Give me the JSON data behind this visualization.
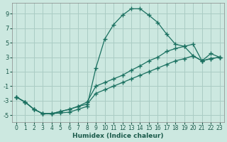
{
  "xlabel": "Humidex (Indice chaleur)",
  "ylabel": "",
  "background_color": "#cce8e0",
  "grid_color": "#aaccc4",
  "line_color": "#1a7060",
  "xlim": [
    -0.5,
    23.5
  ],
  "ylim": [
    -6,
    10.5
  ],
  "xticks": [
    0,
    1,
    2,
    3,
    4,
    5,
    6,
    7,
    8,
    9,
    10,
    11,
    12,
    13,
    14,
    15,
    16,
    17,
    18,
    19,
    20,
    21,
    22,
    23
  ],
  "yticks": [
    -5,
    -3,
    -1,
    1,
    3,
    5,
    7,
    9
  ],
  "series1_x": [
    0,
    1,
    2,
    3,
    4,
    5,
    6,
    7,
    8,
    9,
    10,
    11,
    12,
    13,
    14,
    15,
    16,
    17,
    18,
    19,
    20,
    21,
    22,
    23
  ],
  "series1_y": [
    -2.5,
    -3.2,
    -4.2,
    -4.8,
    -4.8,
    -4.7,
    -4.6,
    -4.2,
    -3.8,
    1.5,
    5.5,
    7.5,
    8.8,
    9.7,
    9.7,
    8.8,
    7.8,
    6.2,
    4.8,
    4.5,
    3.2,
    2.5,
    3.5,
    3.0
  ],
  "series2_x": [
    0,
    1,
    2,
    3,
    4,
    5,
    6,
    7,
    8,
    9,
    10,
    11,
    12,
    13,
    14,
    15,
    16,
    17,
    18,
    19,
    20,
    21,
    22,
    23
  ],
  "series2_y": [
    -2.5,
    -3.2,
    -4.2,
    -4.8,
    -4.8,
    -4.5,
    -4.2,
    -3.8,
    -3.2,
    -1.0,
    -0.5,
    0.0,
    0.5,
    1.2,
    1.8,
    2.5,
    3.0,
    3.8,
    4.2,
    4.5,
    4.8,
    2.5,
    2.8,
    3.0
  ],
  "series3_x": [
    0,
    1,
    2,
    3,
    4,
    5,
    6,
    7,
    8,
    9,
    10,
    11,
    12,
    13,
    14,
    15,
    16,
    17,
    18,
    19,
    20,
    21,
    22,
    23
  ],
  "series3_y": [
    -2.5,
    -3.2,
    -4.2,
    -4.8,
    -4.8,
    -4.5,
    -4.2,
    -3.8,
    -3.5,
    -2.0,
    -1.5,
    -1.0,
    -0.5,
    0.0,
    0.5,
    1.0,
    1.5,
    2.0,
    2.5,
    2.8,
    3.2,
    2.5,
    2.8,
    3.0
  ]
}
